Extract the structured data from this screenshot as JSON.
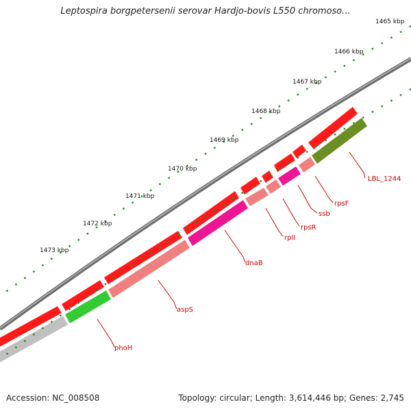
{
  "title": "Leptospira borgpetersenii serovar Hardjo-bovis L550 chromoso...",
  "footer": {
    "accession": "Accession: NC_008508",
    "summary": "Topology: circular; Length: 3,614,446 bp; Genes: 2,745"
  },
  "ruler": {
    "ticks": [
      {
        "label": "1465 kbp"
      },
      {
        "label": "1466 kbp"
      },
      {
        "label": "1467 kbp"
      },
      {
        "label": "1468 kbp"
      },
      {
        "label": "1469 kbp"
      },
      {
        "label": "1470 kbp"
      },
      {
        "label": "1471 kbp"
      },
      {
        "label": "1472 kbp"
      },
      {
        "label": "1473 kbp"
      }
    ]
  },
  "gene_labels": [
    {
      "name": "LBL_1244"
    },
    {
      "name": "rpsF"
    },
    {
      "name": "ssb"
    },
    {
      "name": "rpsR"
    },
    {
      "name": "rplI"
    },
    {
      "name": "dnaB"
    },
    {
      "name": "aspS"
    },
    {
      "name": "phoH"
    }
  ],
  "colors": {
    "forward_gene": "#ff0000",
    "salmon": "#f08080",
    "magenta": "#ee1493",
    "green": "#33cc33",
    "olive": "#6b8e23",
    "grey": "#c0c0c0",
    "backbone": "#888888",
    "tick": "#228b22",
    "label": "#cc0000"
  }
}
